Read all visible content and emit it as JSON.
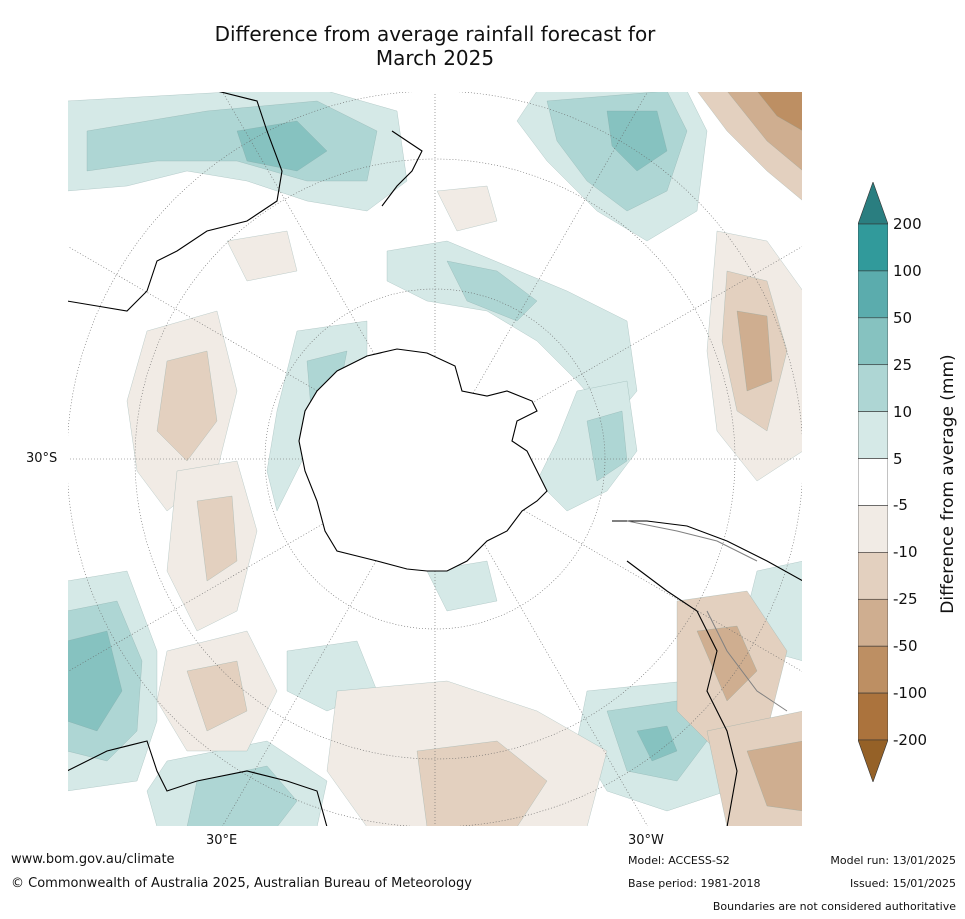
{
  "title": "Difference from average rainfall forecast for\nMarch 2025",
  "map": {
    "latitude_label": "30°S",
    "longitude_labels": [
      "30°E",
      "30°W"
    ],
    "icons": [
      "antarctica-landmass",
      "continent-outline",
      "graticule-grid",
      "rainfall-anomaly-contours"
    ]
  },
  "colorbar": {
    "title": "Difference from average (mm)",
    "tick_labels": [
      "200",
      "100",
      "50",
      "25",
      "10",
      "5",
      "-5",
      "-10",
      "-25",
      "-50",
      "-100",
      "-200"
    ],
    "colors": {
      "over_200": "#2a7e80",
      "100_200": "#319a9b",
      "50_100": "#5bacad",
      "25_50": "#86c2c0",
      "10_25": "#aed6d4",
      "5_10": "#d5e9e7",
      "neutral": "#ffffff",
      "m5_m10": "#f1ebe5",
      "m10_m25": "#e3d0bf",
      "m25_m50": "#cfae90",
      "m50_m100": "#bd8f63",
      "m100_m200": "#ab733d",
      "under_m200": "#956127"
    }
  },
  "footer": {
    "url": "www.bom.gov.au/climate",
    "copyright": "© Commonwealth of Australia 2025, Australian Bureau of Meteorology",
    "model": "Model: ACCESS-S2",
    "base_period": "Base period: 1981-2018",
    "model_run": "Model run: 13/01/2025",
    "issued": "Issued: 15/01/2025",
    "disclaimer": "Boundaries are not considered authoritative"
  }
}
